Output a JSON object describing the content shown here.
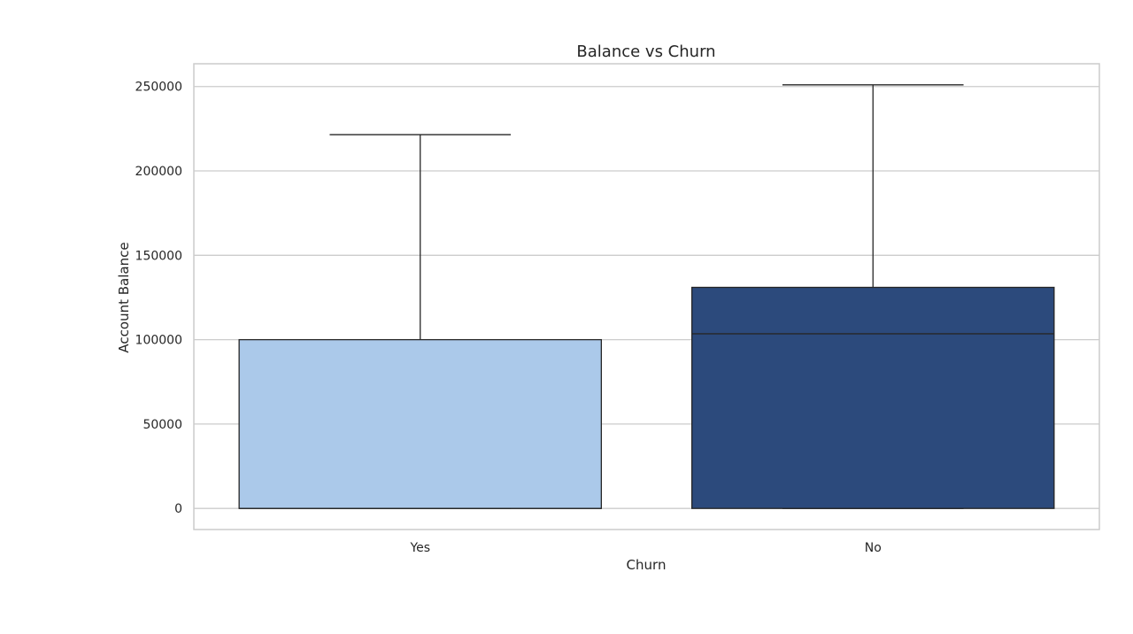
{
  "chart_data": {
    "type": "box",
    "title": "Balance vs Churn",
    "xlabel": "Churn",
    "ylabel": "Account Balance",
    "categories": [
      "Yes",
      "No"
    ],
    "boxes": [
      {
        "category": "Yes",
        "whisker_low": 0,
        "q1": 0,
        "median": 0,
        "q3": 100000,
        "whisker_high": 221500,
        "color": "#abc9ea"
      },
      {
        "category": "No",
        "whisker_low": 0,
        "q1": 0,
        "median": 103500,
        "q3": 131000,
        "whisker_high": 251000,
        "color": "#2c4a7c"
      }
    ],
    "ylim": [
      -12500,
      263500
    ],
    "yticks": [
      0,
      50000,
      100000,
      150000,
      200000,
      250000
    ],
    "ytick_labels": [
      "0",
      "50000",
      "100000",
      "150000",
      "200000",
      "250000"
    ],
    "grid": true,
    "frame_color": "#cccccc",
    "grid_color": "#cccccc",
    "line_color": "#262626"
  }
}
